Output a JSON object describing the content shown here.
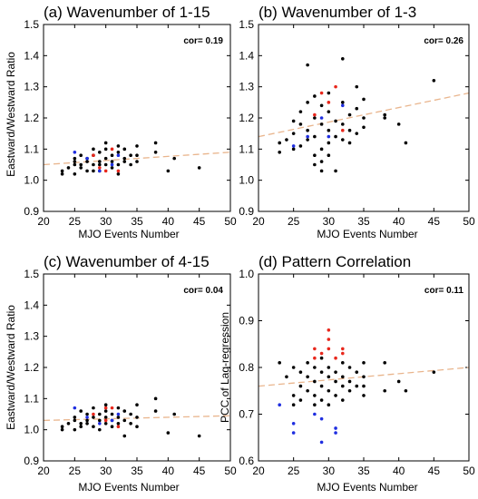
{
  "colors": {
    "black": "#000000",
    "red": "#e8271c",
    "blue": "#1f2ee0",
    "trend": "#e9b58d"
  },
  "chart_data": [
    {
      "type": "scatter",
      "title": "(a) Wavenumber of 1-15",
      "xlabel": "MJO Events Number",
      "ylabel": "Eastward/Westward Ratio",
      "xlim": [
        20,
        50
      ],
      "ylim": [
        0.9,
        1.5
      ],
      "xticks": [
        20,
        25,
        30,
        35,
        40,
        45,
        50
      ],
      "yticks": [
        "0.9",
        "1.0",
        "1.1",
        "1.2",
        "1.3",
        "1.4",
        "1.5"
      ],
      "annotation": "cor= 0.19",
      "trend": [
        [
          20,
          1.05
        ],
        [
          50,
          1.09
        ]
      ],
      "series": [
        {
          "color": "black",
          "points": [
            [
              23,
              1.03
            ],
            [
              23,
              1.02
            ],
            [
              24,
              1.04
            ],
            [
              25,
              1.06
            ],
            [
              25,
              1.05
            ],
            [
              25,
              1.07
            ],
            [
              25,
              1.02
            ],
            [
              26,
              1.05
            ],
            [
              26,
              1.08
            ],
            [
              26,
              1.04
            ],
            [
              27,
              1.06
            ],
            [
              27,
              1.07
            ],
            [
              27,
              1.03
            ],
            [
              28,
              1.05
            ],
            [
              28,
              1.08
            ],
            [
              28,
              1.1
            ],
            [
              28,
              1.03
            ],
            [
              29,
              1.06
            ],
            [
              29,
              1.09
            ],
            [
              29,
              1.05
            ],
            [
              29,
              1.03
            ],
            [
              30,
              1.07
            ],
            [
              30,
              1.05
            ],
            [
              30,
              1.1
            ],
            [
              30,
              1.12
            ],
            [
              31,
              1.04
            ],
            [
              31,
              1.08
            ],
            [
              31,
              1.06
            ],
            [
              32,
              1.09
            ],
            [
              32,
              1.05
            ],
            [
              32,
              1.11
            ],
            [
              32,
              1.02
            ],
            [
              33,
              1.07
            ],
            [
              33,
              1.06
            ],
            [
              33,
              1.1
            ],
            [
              34,
              1.08
            ],
            [
              34,
              1.05
            ],
            [
              35,
              1.11
            ],
            [
              35,
              1.06
            ],
            [
              35,
              1.08
            ],
            [
              38,
              1.12
            ],
            [
              38,
              1.09
            ],
            [
              40,
              1.03
            ],
            [
              41,
              1.07
            ],
            [
              45,
              1.04
            ]
          ]
        },
        {
          "color": "red",
          "points": [
            [
              28,
              1.08
            ],
            [
              29,
              1.04
            ],
            [
              30,
              1.03
            ],
            [
              31,
              1.1
            ],
            [
              32,
              1.03
            ]
          ]
        },
        {
          "color": "blue",
          "points": [
            [
              25,
              1.09
            ],
            [
              27,
              1.07
            ],
            [
              29,
              1.03
            ],
            [
              31,
              1.05
            ],
            [
              32,
              1.08
            ]
          ]
        }
      ]
    },
    {
      "type": "scatter",
      "title": "(b) Wavenumber of 1-3",
      "xlabel": "MJO Events Number",
      "ylabel": "",
      "xlim": [
        20,
        50
      ],
      "ylim": [
        0.9,
        1.5
      ],
      "xticks": [
        20,
        25,
        30,
        35,
        40,
        45,
        50
      ],
      "yticks": [
        "0.9",
        "1.0",
        "1.1",
        "1.2",
        "1.3",
        "1.4",
        "1.5"
      ],
      "annotation": "cor= 0.26",
      "trend": [
        [
          20,
          1.14
        ],
        [
          50,
          1.28
        ]
      ],
      "series": [
        {
          "color": "black",
          "points": [
            [
              23,
              1.12
            ],
            [
              23,
              1.09
            ],
            [
              24,
              1.13
            ],
            [
              25,
              1.1
            ],
            [
              25,
              1.19
            ],
            [
              25,
              1.15
            ],
            [
              26,
              1.22
            ],
            [
              26,
              1.18
            ],
            [
              26,
              1.11
            ],
            [
              27,
              1.37
            ],
            [
              27,
              1.25
            ],
            [
              27,
              1.16
            ],
            [
              27,
              1.13
            ],
            [
              28,
              1.27
            ],
            [
              28,
              1.2
            ],
            [
              28,
              1.14
            ],
            [
              28,
              1.05
            ],
            [
              28,
              1.08
            ],
            [
              29,
              1.24
            ],
            [
              29,
              1.18
            ],
            [
              29,
              1.1
            ],
            [
              29,
              1.06
            ],
            [
              29,
              1.03
            ],
            [
              30,
              1.28
            ],
            [
              30,
              1.22
            ],
            [
              30,
              1.16
            ],
            [
              30,
              1.12
            ],
            [
              30,
              1.08
            ],
            [
              31,
              1.19
            ],
            [
              31,
              1.14
            ],
            [
              31,
              1.03
            ],
            [
              32,
              1.39
            ],
            [
              32,
              1.25
            ],
            [
              32,
              1.18
            ],
            [
              32,
              1.13
            ],
            [
              33,
              1.21
            ],
            [
              33,
              1.16
            ],
            [
              33,
              1.12
            ],
            [
              34,
              1.3
            ],
            [
              34,
              1.23
            ],
            [
              34,
              1.15
            ],
            [
              35,
              1.26
            ],
            [
              35,
              1.2
            ],
            [
              35,
              1.17
            ],
            [
              38,
              1.21
            ],
            [
              38,
              1.2
            ],
            [
              40,
              1.18
            ],
            [
              41,
              1.12
            ],
            [
              45,
              1.32
            ]
          ]
        },
        {
          "color": "red",
          "points": [
            [
              28,
              1.21
            ],
            [
              29,
              1.28
            ],
            [
              30,
              1.25
            ],
            [
              31,
              1.3
            ],
            [
              32,
              1.16
            ]
          ]
        },
        {
          "color": "blue",
          "points": [
            [
              25,
              1.11
            ],
            [
              27,
              1.14
            ],
            [
              29,
              1.2
            ],
            [
              30,
              1.14
            ],
            [
              32,
              1.24
            ]
          ]
        }
      ]
    },
    {
      "type": "scatter",
      "title": "(c) Wavenumber of 4-15",
      "xlabel": "MJO Events Number",
      "ylabel": "Eastward/Westward Ratio",
      "xlim": [
        20,
        50
      ],
      "ylim": [
        0.9,
        1.5
      ],
      "xticks": [
        20,
        25,
        30,
        35,
        40,
        45,
        50
      ],
      "yticks": [
        "0.9",
        "1.0",
        "1.1",
        "1.2",
        "1.3",
        "1.4",
        "1.5"
      ],
      "annotation": "cor= 0.04",
      "trend": [
        [
          20,
          1.03
        ],
        [
          50,
          1.045
        ]
      ],
      "series": [
        {
          "color": "black",
          "points": [
            [
              23,
              1.01
            ],
            [
              23,
              1.0
            ],
            [
              24,
              1.02
            ],
            [
              25,
              1.04
            ],
            [
              25,
              1.03
            ],
            [
              25,
              1.0
            ],
            [
              26,
              1.06
            ],
            [
              26,
              1.02
            ],
            [
              26,
              1.01
            ],
            [
              27,
              1.05
            ],
            [
              27,
              1.03
            ],
            [
              27,
              1.02
            ],
            [
              28,
              1.07
            ],
            [
              28,
              1.04
            ],
            [
              28,
              1.01
            ],
            [
              29,
              1.05
            ],
            [
              29,
              1.03
            ],
            [
              29,
              1.0
            ],
            [
              30,
              1.06
            ],
            [
              30,
              1.04
            ],
            [
              30,
              1.02
            ],
            [
              30,
              1.08
            ],
            [
              31,
              1.05
            ],
            [
              31,
              1.03
            ],
            [
              31,
              1.01
            ],
            [
              32,
              1.07
            ],
            [
              32,
              1.04
            ],
            [
              32,
              1.02
            ],
            [
              33,
              1.06
            ],
            [
              33,
              1.03
            ],
            [
              33,
              0.98
            ],
            [
              34,
              1.05
            ],
            [
              34,
              1.02
            ],
            [
              35,
              1.08
            ],
            [
              35,
              1.04
            ],
            [
              35,
              1.01
            ],
            [
              38,
              1.1
            ],
            [
              38,
              1.06
            ],
            [
              40,
              0.99
            ],
            [
              41,
              1.05
            ],
            [
              45,
              0.98
            ]
          ]
        },
        {
          "color": "red",
          "points": [
            [
              28,
              1.05
            ],
            [
              30,
              1.07
            ],
            [
              30,
              1.03
            ],
            [
              31,
              1.07
            ],
            [
              32,
              1.01
            ]
          ]
        },
        {
          "color": "blue",
          "points": [
            [
              25,
              1.07
            ],
            [
              27,
              1.04
            ],
            [
              29,
              1.02
            ],
            [
              31,
              1.03
            ],
            [
              32,
              1.05
            ]
          ]
        }
      ]
    },
    {
      "type": "scatter",
      "title": "(d) Pattern Correlation",
      "xlabel": "MJO Events Number",
      "ylabel": "PCC of Lag-regression",
      "xlim": [
        20,
        50
      ],
      "ylim": [
        0.6,
        1.0
      ],
      "xticks": [
        20,
        25,
        30,
        35,
        40,
        45,
        50
      ],
      "yticks": [
        "0.6",
        "0.7",
        "0.8",
        "0.9",
        "1.0"
      ],
      "annotation": "cor= 0.11",
      "trend": [
        [
          20,
          0.76
        ],
        [
          50,
          0.8
        ]
      ],
      "series": [
        {
          "color": "black",
          "points": [
            [
              23,
              0.81
            ],
            [
              24,
              0.78
            ],
            [
              25,
              0.8
            ],
            [
              25,
              0.74
            ],
            [
              25,
              0.72
            ],
            [
              26,
              0.79
            ],
            [
              26,
              0.76
            ],
            [
              26,
              0.73
            ],
            [
              27,
              0.81
            ],
            [
              27,
              0.78
            ],
            [
              27,
              0.75
            ],
            [
              28,
              0.8
            ],
            [
              28,
              0.77
            ],
            [
              28,
              0.74
            ],
            [
              28,
              0.72
            ],
            [
              29,
              0.82
            ],
            [
              29,
              0.79
            ],
            [
              29,
              0.76
            ],
            [
              29,
              0.73
            ],
            [
              30,
              0.8
            ],
            [
              30,
              0.78
            ],
            [
              30,
              0.75
            ],
            [
              30,
              0.72
            ],
            [
              31,
              0.79
            ],
            [
              31,
              0.77
            ],
            [
              31,
              0.74
            ],
            [
              32,
              0.81
            ],
            [
              32,
              0.78
            ],
            [
              32,
              0.76
            ],
            [
              32,
              0.73
            ],
            [
              33,
              0.8
            ],
            [
              33,
              0.77
            ],
            [
              33,
              0.75
            ],
            [
              34,
              0.79
            ],
            [
              34,
              0.76
            ],
            [
              35,
              0.81
            ],
            [
              35,
              0.78
            ],
            [
              35,
              0.76
            ],
            [
              35,
              0.74
            ],
            [
              38,
              0.81
            ],
            [
              38,
              0.75
            ],
            [
              40,
              0.77
            ],
            [
              41,
              0.75
            ],
            [
              45,
              0.79
            ]
          ]
        },
        {
          "color": "red",
          "points": [
            [
              28,
              0.82
            ],
            [
              28,
              0.84
            ],
            [
              29,
              0.83
            ],
            [
              30,
              0.88
            ],
            [
              30,
              0.86
            ],
            [
              30,
              0.84
            ],
            [
              31,
              0.82
            ],
            [
              32,
              0.84
            ],
            [
              32,
              0.83
            ]
          ]
        },
        {
          "color": "blue",
          "points": [
            [
              23,
              0.72
            ],
            [
              25,
              0.68
            ],
            [
              25,
              0.66
            ],
            [
              28,
              0.7
            ],
            [
              29,
              0.69
            ],
            [
              29,
              0.64
            ],
            [
              31,
              0.67
            ],
            [
              31,
              0.66
            ]
          ]
        }
      ]
    }
  ]
}
